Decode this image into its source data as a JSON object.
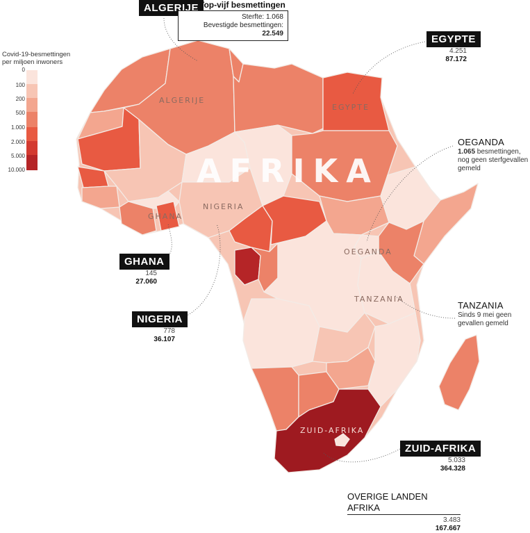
{
  "map_title": "AFRIKA",
  "colors": {
    "bin0": "#fbe4dc",
    "bin1": "#f7c5b4",
    "bin2": "#f3a68f",
    "bin3": "#ec8268",
    "bin4": "#e85a42",
    "bin5": "#d33a30",
    "bin6": "#b52527",
    "bin7": "#9e1a20"
  },
  "legend": {
    "title_line1": "Covid-19-besmettingen",
    "title_line2": "per miljoen inwoners",
    "ticks": [
      "0",
      "100",
      "200",
      "500",
      "1.000",
      "2.000",
      "5.000",
      "10.000"
    ]
  },
  "top5": {
    "title": "Top-vijf besmettingen",
    "deaths_label": "Sterfte:",
    "deaths_value": "1.068",
    "confirmed_label": "Bevestigde besmettingen:",
    "confirmed_value": "22.549"
  },
  "labels": {
    "algerije_tag": "ALGERIJE",
    "egypte_tag": "EGYPTE",
    "ghana_tag": "GHANA",
    "nigeria_tag": "NIGERIA",
    "zuidafrika_tag": "ZUID-AFRIKA",
    "algerije_map": "ALGERIJE",
    "egypte_map": "EGYPTE",
    "nigeria_map": "NIGERIA",
    "ghana_map": "GHANA",
    "oeganda_map": "OEGANDA",
    "tanzania_map": "TANZANIA",
    "zuidafrika_map": "ZUID-AFRIKA"
  },
  "stats": {
    "egypte": {
      "deaths": "4.251",
      "cases": "87.172"
    },
    "ghana": {
      "deaths": "145",
      "cases": "27.060"
    },
    "nigeria": {
      "deaths": "778",
      "cases": "36.107"
    },
    "zuidafrika": {
      "deaths": "5.033",
      "cases": "364.328"
    },
    "overige": {
      "title": "OVERIGE LANDEN AFRIKA",
      "deaths": "3.483",
      "cases": "167.667"
    }
  },
  "oeganda": {
    "title": "OEGANDA",
    "cases_value": "1.065",
    "line1_rest": " besmettingen,",
    "line2": "nog geen sterfgevallen",
    "line3": "gemeld"
  },
  "tanzania": {
    "title": "TANZANIA",
    "line1": "Sinds 9 mei geen",
    "line2": "gevallen gemeld"
  }
}
